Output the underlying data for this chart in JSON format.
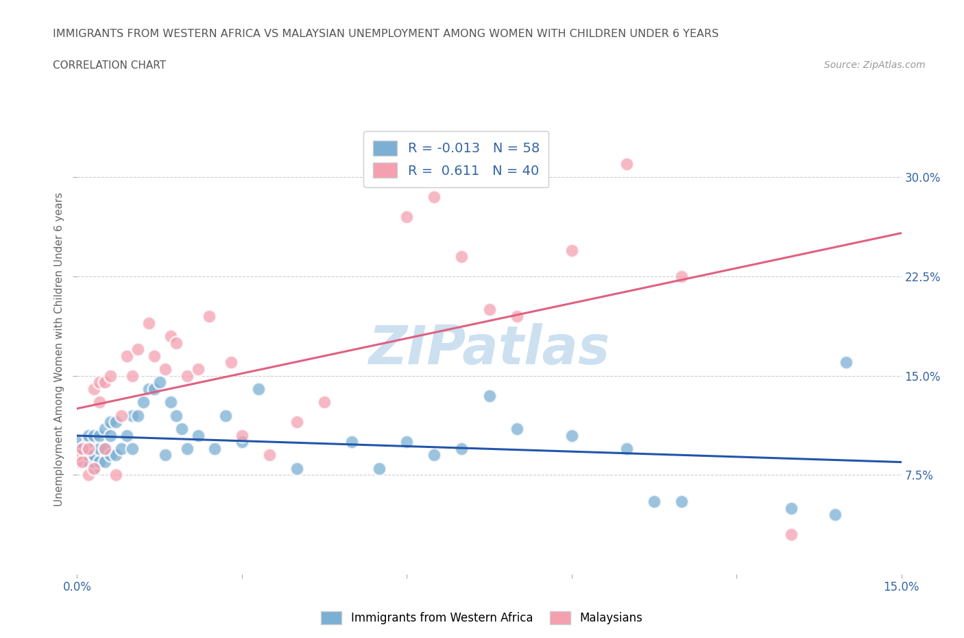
{
  "title": "IMMIGRANTS FROM WESTERN AFRICA VS MALAYSIAN UNEMPLOYMENT AMONG WOMEN WITH CHILDREN UNDER 6 YEARS",
  "subtitle": "CORRELATION CHART",
  "source": "Source: ZipAtlas.com",
  "ylabel": "Unemployment Among Women with Children Under 6 years",
  "xlim": [
    0,
    0.15
  ],
  "ylim": [
    0,
    0.34
  ],
  "xticks": [
    0.0,
    0.03,
    0.06,
    0.09,
    0.12,
    0.15
  ],
  "xticklabels": [
    "0.0%",
    "",
    "",
    "",
    "",
    "15.0%"
  ],
  "ytick_positions": [
    0.075,
    0.15,
    0.225,
    0.3
  ],
  "ytick_labels": [
    "7.5%",
    "15.0%",
    "22.5%",
    "30.0%"
  ],
  "grid_color": "#cccccc",
  "background_color": "#ffffff",
  "blue_color": "#7bafd4",
  "pink_color": "#f4a0b0",
  "trend_blue": "#2255aa",
  "trend_pink": "#e06080",
  "R_blue": -0.013,
  "N_blue": 58,
  "R_pink": 0.611,
  "N_pink": 40,
  "blue_x": [
    0.0,
    0.0,
    0.001,
    0.001,
    0.001,
    0.002,
    0.002,
    0.002,
    0.002,
    0.003,
    0.003,
    0.003,
    0.003,
    0.004,
    0.004,
    0.004,
    0.005,
    0.005,
    0.005,
    0.006,
    0.006,
    0.006,
    0.007,
    0.007,
    0.008,
    0.009,
    0.01,
    0.01,
    0.011,
    0.012,
    0.013,
    0.014,
    0.015,
    0.016,
    0.017,
    0.018,
    0.019,
    0.02,
    0.022,
    0.025,
    0.027,
    0.03,
    0.033,
    0.04,
    0.05,
    0.055,
    0.06,
    0.065,
    0.07,
    0.075,
    0.08,
    0.09,
    0.1,
    0.105,
    0.11,
    0.13,
    0.138,
    0.14
  ],
  "blue_y": [
    0.095,
    0.1,
    0.085,
    0.09,
    0.095,
    0.085,
    0.09,
    0.1,
    0.105,
    0.08,
    0.085,
    0.09,
    0.105,
    0.085,
    0.095,
    0.105,
    0.085,
    0.095,
    0.11,
    0.09,
    0.105,
    0.115,
    0.09,
    0.115,
    0.095,
    0.105,
    0.095,
    0.12,
    0.12,
    0.13,
    0.14,
    0.14,
    0.145,
    0.09,
    0.13,
    0.12,
    0.11,
    0.095,
    0.105,
    0.095,
    0.12,
    0.1,
    0.14,
    0.08,
    0.1,
    0.08,
    0.1,
    0.09,
    0.095,
    0.135,
    0.11,
    0.105,
    0.095,
    0.055,
    0.055,
    0.05,
    0.045,
    0.16
  ],
  "pink_x": [
    0.0,
    0.0,
    0.001,
    0.001,
    0.002,
    0.002,
    0.003,
    0.003,
    0.004,
    0.004,
    0.005,
    0.005,
    0.006,
    0.007,
    0.008,
    0.009,
    0.01,
    0.011,
    0.013,
    0.014,
    0.016,
    0.017,
    0.018,
    0.02,
    0.022,
    0.024,
    0.028,
    0.03,
    0.035,
    0.04,
    0.045,
    0.06,
    0.065,
    0.07,
    0.075,
    0.08,
    0.09,
    0.1,
    0.11,
    0.13
  ],
  "pink_y": [
    0.085,
    0.09,
    0.085,
    0.095,
    0.075,
    0.095,
    0.08,
    0.14,
    0.13,
    0.145,
    0.095,
    0.145,
    0.15,
    0.075,
    0.12,
    0.165,
    0.15,
    0.17,
    0.19,
    0.165,
    0.155,
    0.18,
    0.175,
    0.15,
    0.155,
    0.195,
    0.16,
    0.105,
    0.09,
    0.115,
    0.13,
    0.27,
    0.285,
    0.24,
    0.2,
    0.195,
    0.245,
    0.31,
    0.225,
    0.03
  ],
  "watermark": "ZIPatlas",
  "watermark_color": "#cce0f0",
  "legend_label_blue": "Immigrants from Western Africa",
  "legend_label_pink": "Malaysians"
}
